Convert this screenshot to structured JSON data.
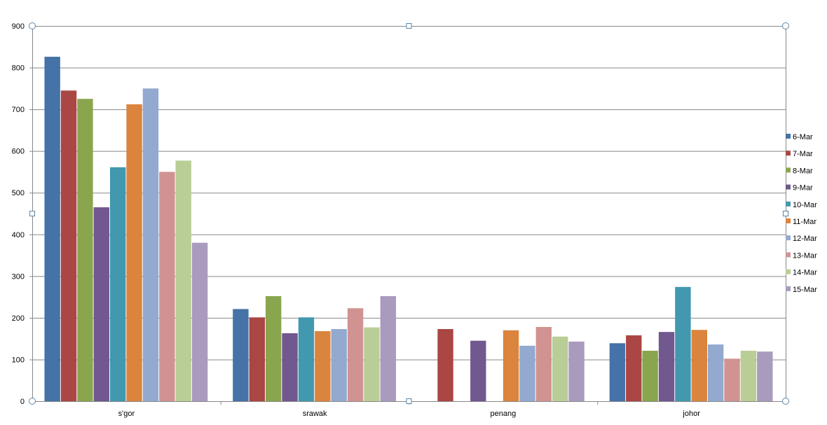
{
  "chart_data": {
    "type": "bar",
    "title": "",
    "xlabel": "",
    "ylabel": "",
    "ylim": [
      0,
      900
    ],
    "yticks": [
      0,
      100,
      200,
      300,
      400,
      500,
      600,
      700,
      800,
      900
    ],
    "grid": true,
    "legend_position": "right",
    "categories": [
      "s'gor",
      "srawak",
      "penang",
      "johor"
    ],
    "series": [
      {
        "name": "6-Mar",
        "color": "#4572A7",
        "values": [
          826,
          221,
          0,
          139
        ]
      },
      {
        "name": "7-Mar",
        "color": "#AA4643",
        "values": [
          745,
          201,
          173,
          158
        ]
      },
      {
        "name": "8-Mar",
        "color": "#89A54E",
        "values": [
          725,
          252,
          0,
          121
        ]
      },
      {
        "name": "9-Mar",
        "color": "#71588F",
        "values": [
          465,
          163,
          145,
          166
        ]
      },
      {
        "name": "10-Mar",
        "color": "#4198AF",
        "values": [
          561,
          201,
          0,
          274
        ]
      },
      {
        "name": "11-Mar",
        "color": "#DB843D",
        "values": [
          712,
          168,
          170,
          171
        ]
      },
      {
        "name": "12-Mar",
        "color": "#93A9CF",
        "values": [
          750,
          173,
          133,
          136
        ]
      },
      {
        "name": "13-Mar",
        "color": "#D19392",
        "values": [
          550,
          223,
          178,
          102
        ]
      },
      {
        "name": "14-Mar",
        "color": "#B9CD96",
        "values": [
          577,
          177,
          155,
          121
        ]
      },
      {
        "name": "15-Mar",
        "color": "#A99BBD",
        "values": [
          380,
          252,
          143,
          119
        ]
      }
    ]
  }
}
